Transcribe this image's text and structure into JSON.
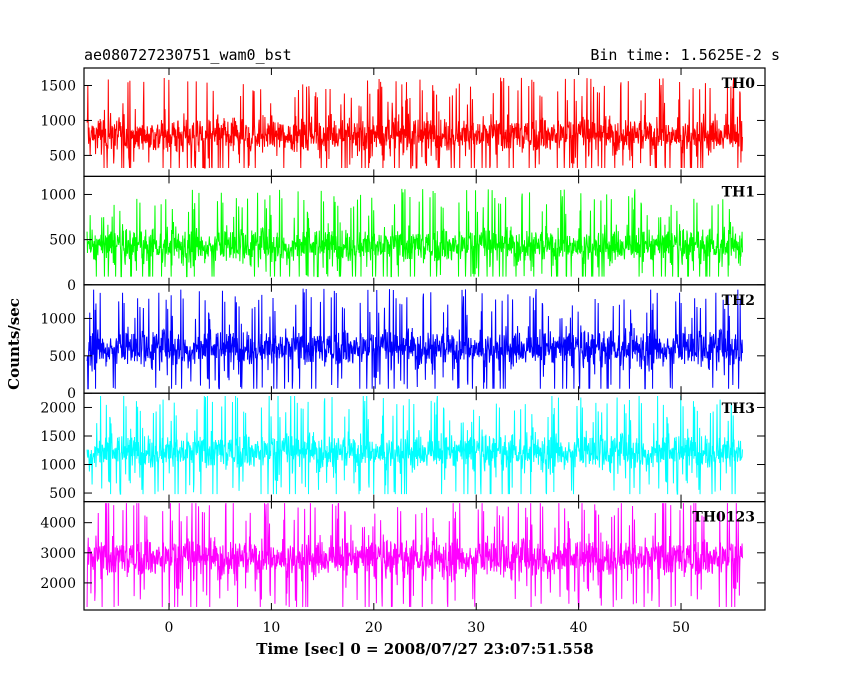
{
  "header": {
    "title": "ae080727230751_wam0_bst",
    "bin_time": "Bin time: 1.5625E-2 s"
  },
  "chart_data": {
    "type": "line",
    "title": "ae080727230751_wam0_bst",
    "subtitle": "Bin time: 1.5625E-2 s",
    "xlabel": "Time [sec] 0 = 2008/07/27 23:07:51.558",
    "ylabel": "Counts/sec",
    "xlim": [
      -8.3,
      58.2
    ],
    "x_ticks": [
      0,
      10,
      20,
      30,
      40,
      50
    ],
    "x_data_range": [
      -8.0,
      56.0
    ],
    "bin_time_s": 0.015625,
    "grid": false,
    "panels": [
      {
        "name": "TH0",
        "color": "#ff0000",
        "ylim": [
          200,
          1750
        ],
        "y_ticks": [
          500,
          1000,
          1500
        ],
        "mean": 790,
        "min": 320,
        "max": 1700
      },
      {
        "name": "TH1",
        "color": "#00ff00",
        "ylim": [
          0,
          1200
        ],
        "y_ticks": [
          0,
          500,
          1000
        ],
        "mean": 430,
        "min": 90,
        "max": 1150
      },
      {
        "name": "TH2",
        "color": "#0000ff",
        "ylim": [
          0,
          1450
        ],
        "y_ticks": [
          0,
          500,
          1000
        ],
        "mean": 600,
        "min": 60,
        "max": 1400
      },
      {
        "name": "TH3",
        "color": "#00ffff",
        "ylim": [
          350,
          2250
        ],
        "y_ticks": [
          500,
          1000,
          1500,
          2000
        ],
        "mean": 1220,
        "min": 480,
        "max": 2200
      },
      {
        "name": "TH0123",
        "color": "#ff00ff",
        "ylim": [
          1100,
          4700
        ],
        "y_ticks": [
          2000,
          3000,
          4000
        ],
        "mean": 2820,
        "min": 1200,
        "max": 4650
      }
    ]
  }
}
